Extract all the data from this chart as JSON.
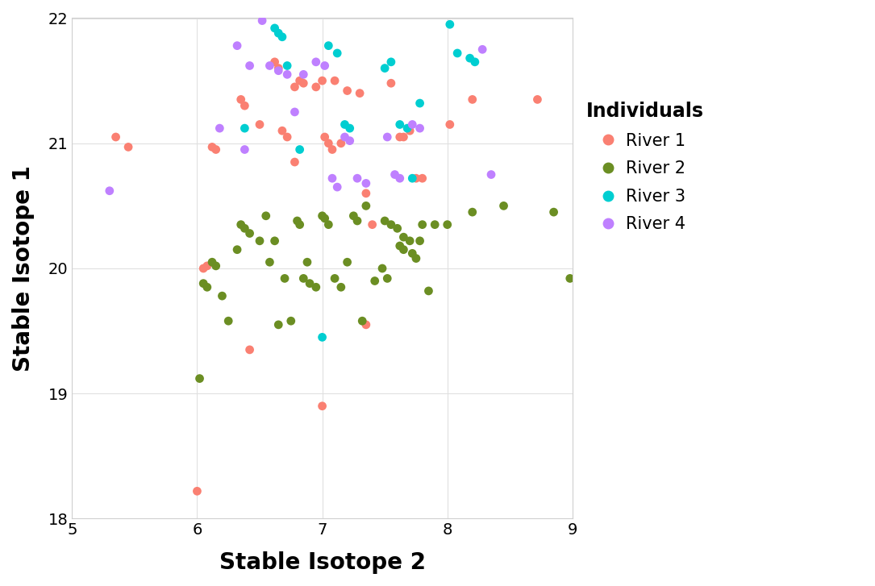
{
  "xlabel": "Stable Isotope 2",
  "ylabel": "Stable Isotope 1",
  "xlim": [
    5,
    9
  ],
  "ylim": [
    18,
    22
  ],
  "xticks": [
    5,
    6,
    7,
    8,
    9
  ],
  "yticks": [
    18,
    19,
    20,
    21,
    22
  ],
  "legend_title": "Individuals",
  "plot_bg": "#ffffff",
  "fig_bg": "#ffffff",
  "grid_color": "#e0e0e0",
  "colors": {
    "River 1": "#FA8072",
    "River 2": "#6B8E23",
    "River 3": "#00CED1",
    "River 4": "#BF80FF"
  },
  "river1": [
    [
      5.35,
      21.05
    ],
    [
      5.45,
      20.97
    ],
    [
      6.0,
      18.22
    ],
    [
      6.05,
      20.0
    ],
    [
      6.08,
      20.02
    ],
    [
      6.12,
      20.97
    ],
    [
      6.15,
      20.95
    ],
    [
      6.35,
      21.35
    ],
    [
      6.38,
      21.3
    ],
    [
      6.5,
      21.15
    ],
    [
      6.62,
      21.65
    ],
    [
      6.65,
      21.6
    ],
    [
      6.72,
      21.05
    ],
    [
      6.78,
      20.85
    ],
    [
      6.82,
      21.5
    ],
    [
      6.85,
      21.48
    ],
    [
      6.95,
      21.45
    ],
    [
      7.0,
      21.5
    ],
    [
      7.02,
      21.05
    ],
    [
      7.05,
      21.0
    ],
    [
      7.1,
      21.5
    ],
    [
      7.15,
      21.0
    ],
    [
      7.2,
      21.42
    ],
    [
      7.3,
      21.4
    ],
    [
      7.35,
      20.6
    ],
    [
      7.4,
      20.35
    ],
    [
      7.0,
      18.9
    ],
    [
      6.42,
      19.35
    ],
    [
      7.62,
      21.05
    ],
    [
      7.65,
      21.05
    ],
    [
      7.7,
      21.1
    ],
    [
      7.75,
      20.72
    ],
    [
      7.8,
      20.72
    ],
    [
      8.02,
      21.15
    ],
    [
      8.2,
      21.35
    ],
    [
      8.72,
      21.35
    ],
    [
      7.35,
      19.55
    ],
    [
      7.55,
      21.48
    ],
    [
      6.68,
      21.1
    ],
    [
      6.78,
      21.45
    ],
    [
      7.08,
      20.95
    ]
  ],
  "river2": [
    [
      6.02,
      19.12
    ],
    [
      6.05,
      19.88
    ],
    [
      6.08,
      19.85
    ],
    [
      6.12,
      20.05
    ],
    [
      6.15,
      20.02
    ],
    [
      6.2,
      19.78
    ],
    [
      6.25,
      19.58
    ],
    [
      6.32,
      20.15
    ],
    [
      6.35,
      20.35
    ],
    [
      6.38,
      20.32
    ],
    [
      6.42,
      20.28
    ],
    [
      6.5,
      20.22
    ],
    [
      6.58,
      20.05
    ],
    [
      6.65,
      19.55
    ],
    [
      6.7,
      19.92
    ],
    [
      6.75,
      19.58
    ],
    [
      6.8,
      20.38
    ],
    [
      6.82,
      20.35
    ],
    [
      6.85,
      19.92
    ],
    [
      6.9,
      19.88
    ],
    [
      6.95,
      19.85
    ],
    [
      7.0,
      20.42
    ],
    [
      7.02,
      20.4
    ],
    [
      7.05,
      20.35
    ],
    [
      7.1,
      19.92
    ],
    [
      7.15,
      19.85
    ],
    [
      7.2,
      20.05
    ],
    [
      7.25,
      20.42
    ],
    [
      7.28,
      20.38
    ],
    [
      7.35,
      20.5
    ],
    [
      7.5,
      20.38
    ],
    [
      7.55,
      20.35
    ],
    [
      7.6,
      20.32
    ],
    [
      7.65,
      20.25
    ],
    [
      7.7,
      20.22
    ],
    [
      7.75,
      20.08
    ],
    [
      7.8,
      20.35
    ],
    [
      7.85,
      19.82
    ],
    [
      7.9,
      20.35
    ],
    [
      8.0,
      20.35
    ],
    [
      8.2,
      20.45
    ],
    [
      8.45,
      20.5
    ],
    [
      8.85,
      20.45
    ],
    [
      8.98,
      19.92
    ],
    [
      6.55,
      20.42
    ],
    [
      6.62,
      20.22
    ],
    [
      7.32,
      19.58
    ],
    [
      7.42,
      19.9
    ],
    [
      7.48,
      20.0
    ],
    [
      7.52,
      19.92
    ],
    [
      7.62,
      20.18
    ],
    [
      7.65,
      20.15
    ],
    [
      7.72,
      20.12
    ],
    [
      7.78,
      20.22
    ],
    [
      6.88,
      20.05
    ]
  ],
  "river3": [
    [
      6.38,
      21.12
    ],
    [
      6.62,
      21.92
    ],
    [
      6.65,
      21.88
    ],
    [
      6.68,
      21.85
    ],
    [
      6.72,
      21.62
    ],
    [
      6.82,
      20.95
    ],
    [
      7.0,
      19.45
    ],
    [
      7.05,
      21.78
    ],
    [
      7.12,
      21.72
    ],
    [
      7.5,
      21.6
    ],
    [
      7.55,
      21.65
    ],
    [
      7.62,
      21.15
    ],
    [
      7.68,
      21.12
    ],
    [
      7.72,
      20.72
    ],
    [
      7.78,
      21.32
    ],
    [
      8.02,
      21.95
    ],
    [
      8.08,
      21.72
    ],
    [
      8.18,
      21.68
    ],
    [
      8.22,
      21.65
    ],
    [
      7.18,
      21.15
    ],
    [
      7.22,
      21.12
    ]
  ],
  "river4": [
    [
      5.3,
      20.62
    ],
    [
      6.18,
      21.12
    ],
    [
      6.32,
      21.78
    ],
    [
      6.38,
      20.95
    ],
    [
      6.42,
      21.62
    ],
    [
      6.52,
      21.98
    ],
    [
      6.58,
      21.62
    ],
    [
      6.65,
      21.58
    ],
    [
      6.72,
      21.55
    ],
    [
      6.78,
      21.25
    ],
    [
      6.85,
      21.55
    ],
    [
      6.95,
      21.65
    ],
    [
      7.02,
      21.62
    ],
    [
      7.08,
      20.72
    ],
    [
      7.12,
      20.65
    ],
    [
      7.22,
      21.02
    ],
    [
      7.28,
      20.72
    ],
    [
      7.52,
      21.05
    ],
    [
      7.58,
      20.75
    ],
    [
      7.62,
      20.72
    ],
    [
      7.72,
      21.15
    ],
    [
      7.78,
      21.12
    ],
    [
      8.28,
      21.75
    ],
    [
      8.35,
      20.75
    ],
    [
      7.18,
      21.05
    ],
    [
      7.35,
      20.68
    ]
  ]
}
